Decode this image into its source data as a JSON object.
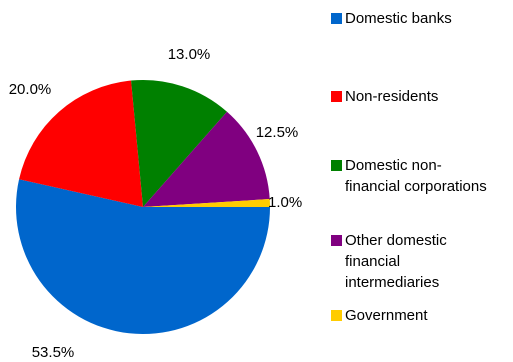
{
  "chart_data": {
    "type": "pie",
    "categories": [
      "Domestic banks",
      "Non-residents",
      "Domestic non-\nfinancial corporations",
      "Other domestic\nfinancial\nintermediaries",
      "Government"
    ],
    "values": [
      53.5,
      20.0,
      13.0,
      12.5,
      1.0
    ],
    "value_labels": [
      "53.5%",
      "20.0%",
      "13.0%",
      "12.5%",
      "1.0%"
    ],
    "colors": [
      "#0066cc",
      "#ff0000",
      "#008000",
      "#800080",
      "#ffcc00"
    ],
    "legend_position": "right"
  }
}
